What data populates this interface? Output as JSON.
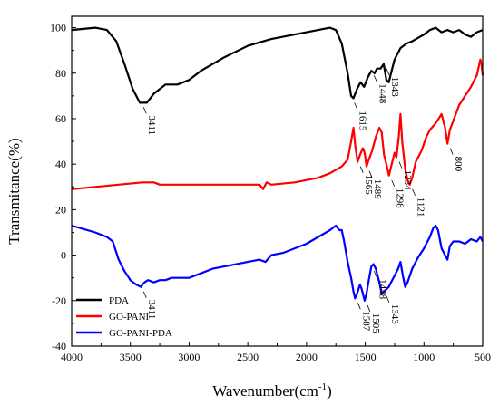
{
  "chart_data": {
    "type": "line",
    "xlabel": "Wavenumber(cm",
    "xlabel_sup": "-1",
    "xlabel_close": ")",
    "ylabel": "Transmitance(%)",
    "xlim": [
      4000,
      500
    ],
    "ylim": [
      -40,
      105
    ],
    "x_reversed": true,
    "grid": false,
    "legend_placement": "bottom-left",
    "x_ticks": [
      4000,
      3500,
      3000,
      2500,
      2000,
      1500,
      1000,
      500
    ],
    "y_ticks": [
      -40,
      -20,
      0,
      20,
      40,
      60,
      80,
      100
    ],
    "series": [
      {
        "name": "PDA",
        "color": "#000000",
        "points": [
          [
            4000,
            99
          ],
          [
            3800,
            100
          ],
          [
            3700,
            99
          ],
          [
            3620,
            94
          ],
          [
            3550,
            84
          ],
          [
            3480,
            73
          ],
          [
            3420,
            67
          ],
          [
            3360,
            67
          ],
          [
            3300,
            71
          ],
          [
            3200,
            75
          ],
          [
            3100,
            75
          ],
          [
            3000,
            77
          ],
          [
            2900,
            81
          ],
          [
            2700,
            87
          ],
          [
            2500,
            92
          ],
          [
            2300,
            95
          ],
          [
            2100,
            97
          ],
          [
            1900,
            99
          ],
          [
            1800,
            100
          ],
          [
            1750,
            99
          ],
          [
            1700,
            93
          ],
          [
            1650,
            80
          ],
          [
            1620,
            70
          ],
          [
            1600,
            69
          ],
          [
            1570,
            73
          ],
          [
            1540,
            76
          ],
          [
            1510,
            74
          ],
          [
            1480,
            78
          ],
          [
            1448,
            81
          ],
          [
            1420,
            80
          ],
          [
            1400,
            82
          ],
          [
            1370,
            82
          ],
          [
            1343,
            84
          ],
          [
            1320,
            77
          ],
          [
            1300,
            76
          ],
          [
            1280,
            80
          ],
          [
            1250,
            86
          ],
          [
            1200,
            91
          ],
          [
            1150,
            93
          ],
          [
            1100,
            94
          ],
          [
            1000,
            97
          ],
          [
            950,
            99
          ],
          [
            900,
            100
          ],
          [
            850,
            98
          ],
          [
            800,
            99
          ],
          [
            750,
            98
          ],
          [
            700,
            99
          ],
          [
            650,
            97
          ],
          [
            600,
            96
          ],
          [
            550,
            98
          ],
          [
            500,
            99
          ]
        ]
      },
      {
        "name": "GO-PANI",
        "color": "#ff0000",
        "points": [
          [
            4000,
            29
          ],
          [
            3800,
            30
          ],
          [
            3600,
            31
          ],
          [
            3400,
            32
          ],
          [
            3300,
            32
          ],
          [
            3250,
            31
          ],
          [
            3200,
            31
          ],
          [
            3000,
            31
          ],
          [
            2800,
            31
          ],
          [
            2600,
            31
          ],
          [
            2500,
            31
          ],
          [
            2400,
            31
          ],
          [
            2370,
            29
          ],
          [
            2340,
            32
          ],
          [
            2300,
            31
          ],
          [
            2100,
            32
          ],
          [
            1900,
            34
          ],
          [
            1800,
            36
          ],
          [
            1700,
            39
          ],
          [
            1650,
            42
          ],
          [
            1620,
            50
          ],
          [
            1600,
            56
          ],
          [
            1585,
            48
          ],
          [
            1565,
            41
          ],
          [
            1545,
            44
          ],
          [
            1520,
            47
          ],
          [
            1505,
            45
          ],
          [
            1489,
            39
          ],
          [
            1470,
            42
          ],
          [
            1440,
            46
          ],
          [
            1410,
            52
          ],
          [
            1380,
            56
          ],
          [
            1360,
            54
          ],
          [
            1340,
            44
          ],
          [
            1320,
            40
          ],
          [
            1298,
            35
          ],
          [
            1275,
            40
          ],
          [
            1250,
            45
          ],
          [
            1234,
            43
          ],
          [
            1215,
            52
          ],
          [
            1200,
            62
          ],
          [
            1185,
            50
          ],
          [
            1160,
            38
          ],
          [
            1140,
            33
          ],
          [
            1121,
            31
          ],
          [
            1100,
            34
          ],
          [
            1070,
            41
          ],
          [
            1020,
            46
          ],
          [
            980,
            52
          ],
          [
            950,
            55
          ],
          [
            900,
            58
          ],
          [
            850,
            62
          ],
          [
            820,
            56
          ],
          [
            800,
            49
          ],
          [
            780,
            55
          ],
          [
            700,
            66
          ],
          [
            600,
            74
          ],
          [
            550,
            79
          ],
          [
            520,
            86
          ],
          [
            510,
            84
          ],
          [
            500,
            79
          ]
        ]
      },
      {
        "name": "GO-PANI-PDA",
        "color": "#0000ff",
        "points": [
          [
            4000,
            13
          ],
          [
            3800,
            10
          ],
          [
            3700,
            8
          ],
          [
            3650,
            6
          ],
          [
            3600,
            -2
          ],
          [
            3550,
            -7
          ],
          [
            3500,
            -11
          ],
          [
            3450,
            -13
          ],
          [
            3411,
            -14
          ],
          [
            3380,
            -12
          ],
          [
            3350,
            -11
          ],
          [
            3300,
            -12
          ],
          [
            3250,
            -11
          ],
          [
            3200,
            -11
          ],
          [
            3150,
            -10
          ],
          [
            3100,
            -10
          ],
          [
            3000,
            -10
          ],
          [
            2900,
            -8
          ],
          [
            2800,
            -6
          ],
          [
            2700,
            -5
          ],
          [
            2600,
            -4
          ],
          [
            2500,
            -3
          ],
          [
            2400,
            -2
          ],
          [
            2350,
            -3
          ],
          [
            2300,
            0
          ],
          [
            2200,
            1
          ],
          [
            2100,
            3
          ],
          [
            2000,
            5
          ],
          [
            1900,
            8
          ],
          [
            1800,
            11
          ],
          [
            1750,
            13
          ],
          [
            1720,
            11
          ],
          [
            1700,
            11
          ],
          [
            1680,
            6
          ],
          [
            1650,
            -3
          ],
          [
            1620,
            -10
          ],
          [
            1600,
            -16
          ],
          [
            1587,
            -19
          ],
          [
            1570,
            -17
          ],
          [
            1545,
            -13
          ],
          [
            1530,
            -15
          ],
          [
            1505,
            -20
          ],
          [
            1490,
            -17
          ],
          [
            1470,
            -11
          ],
          [
            1448,
            -5
          ],
          [
            1430,
            -4
          ],
          [
            1410,
            -6
          ],
          [
            1380,
            -12
          ],
          [
            1360,
            -17
          ],
          [
            1343,
            -16
          ],
          [
            1320,
            -15
          ],
          [
            1300,
            -14
          ],
          [
            1280,
            -12
          ],
          [
            1250,
            -9
          ],
          [
            1220,
            -6
          ],
          [
            1200,
            -3
          ],
          [
            1180,
            -9
          ],
          [
            1160,
            -14
          ],
          [
            1140,
            -12
          ],
          [
            1100,
            -6
          ],
          [
            1050,
            -1
          ],
          [
            1000,
            3
          ],
          [
            950,
            8
          ],
          [
            920,
            12
          ],
          [
            900,
            13
          ],
          [
            880,
            11
          ],
          [
            850,
            3
          ],
          [
            820,
            0
          ],
          [
            800,
            -2
          ],
          [
            780,
            4
          ],
          [
            750,
            6
          ],
          [
            700,
            6
          ],
          [
            650,
            5
          ],
          [
            600,
            7
          ],
          [
            550,
            6
          ],
          [
            520,
            8
          ],
          [
            510,
            7
          ],
          [
            500,
            6
          ]
        ]
      }
    ],
    "annotations": [
      {
        "text": "3411",
        "series": "PDA",
        "x": 3411,
        "y": 67
      },
      {
        "text": "1615",
        "series": "PDA",
        "x": 1615,
        "y": 69
      },
      {
        "text": "1448",
        "series": "PDA",
        "x": 1448,
        "y": 81
      },
      {
        "text": "1343",
        "series": "PDA",
        "x": 1343,
        "y": 84
      },
      {
        "text": "1565",
        "series": "GO-PANI",
        "x": 1565,
        "y": 41
      },
      {
        "text": "1489",
        "series": "GO-PANI",
        "x": 1489,
        "y": 39
      },
      {
        "text": "1298",
        "series": "GO-PANI",
        "x": 1298,
        "y": 35
      },
      {
        "text": "1234",
        "series": "GO-PANI",
        "x": 1234,
        "y": 43
      },
      {
        "text": "1121",
        "series": "GO-PANI",
        "x": 1121,
        "y": 31
      },
      {
        "text": "800",
        "series": "GO-PANI",
        "x": 800,
        "y": 49
      },
      {
        "text": "3411",
        "series": "GO-PANI-PDA",
        "x": 3411,
        "y": -14
      },
      {
        "text": "1587",
        "series": "GO-PANI-PDA",
        "x": 1587,
        "y": -19
      },
      {
        "text": "1505",
        "series": "GO-PANI-PDA",
        "x": 1505,
        "y": -20
      },
      {
        "text": "1448",
        "series": "GO-PANI-PDA",
        "x": 1448,
        "y": -5
      },
      {
        "text": "1343",
        "series": "GO-PANI-PDA",
        "x": 1343,
        "y": -16
      }
    ]
  }
}
